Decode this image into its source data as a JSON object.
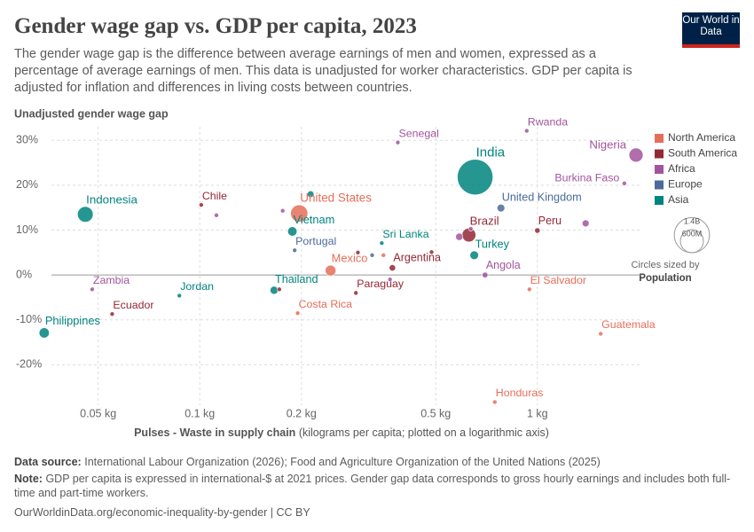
{
  "logo": "Our World in Data",
  "chart_data": {
    "type": "scatter",
    "title": "Gender wage gap vs. GDP per capita, 2023",
    "subtitle": "The gender wage gap is the difference between average earnings of men and women, expressed as a percentage of average earnings of men. This data is unadjusted for worker characteristics. GDP per capita is adjusted for inflation and differences in living costs between countries.",
    "y_label": "Unadjusted gender wage gap",
    "x_label": "Pulses - Waste in supply chain",
    "x_label_note": "(kilograms per capita; plotted on a logarithmic axis)",
    "x_log": true,
    "grid": true,
    "legend_position": "right",
    "xlim": [
      0.033,
      2.02
    ],
    "ylim": [
      -29,
      33
    ],
    "xticks": [
      {
        "value": 0.05,
        "label": "0.05 kg"
      },
      {
        "value": 0.1,
        "label": "0.1 kg"
      },
      {
        "value": 0.2,
        "label": "0.2 kg"
      },
      {
        "value": 0.5,
        "label": "0.5 kg"
      },
      {
        "value": 1,
        "label": "1 kg"
      }
    ],
    "yticks": [
      {
        "value": -20,
        "label": "-20%"
      },
      {
        "value": -10,
        "label": "-10%"
      },
      {
        "value": 0,
        "label": "0%"
      },
      {
        "value": 10,
        "label": "10%"
      },
      {
        "value": 20,
        "label": "20%"
      },
      {
        "value": 30,
        "label": "30%"
      }
    ],
    "series": [
      {
        "name": "North America",
        "color": "#e56e5a",
        "labels": [
          "United States",
          "Mexico",
          "Costa Rica",
          "El Salvador",
          "Guatemala",
          "Honduras",
          null
        ],
        "x": [
          0.197,
          0.244,
          0.195,
          0.947,
          1.54,
          0.748,
          0.35
        ],
        "values": [
          13.7,
          1.0,
          -8.5,
          -3.2,
          -13.1,
          -28.3,
          4.4
        ],
        "sizes": [
          335,
          128,
          5,
          6,
          18,
          10,
          4
        ]
      },
      {
        "name": "South America",
        "color": "#932834",
        "labels": [
          "Chile",
          "Argentina",
          "Brazil",
          "Peru",
          "Ecuador",
          "Paraguay",
          null,
          null,
          null
        ],
        "x": [
          0.101,
          0.372,
          0.627,
          1.0,
          0.055,
          0.29,
          0.294,
          0.486,
          0.172
        ],
        "values": [
          15.6,
          1.6,
          8.9,
          9.9,
          -8.7,
          -4.0,
          5.0,
          5.1,
          -3.2
        ],
        "sizes": [
          19,
          46,
          216,
          34,
          18,
          7,
          3,
          3,
          12
        ]
      },
      {
        "name": "Africa",
        "color": "#a2559c",
        "labels": [
          "Nigeria",
          "Rwanda",
          "Senegal",
          "Burkina Faso",
          "Zambia",
          "Angola",
          null,
          null,
          null,
          null,
          null,
          null
        ],
        "x": [
          1.96,
          0.93,
          0.386,
          1.81,
          0.048,
          0.7,
          0.112,
          0.176,
          0.587,
          1.39,
          0.366,
          0.635
        ],
        "values": [
          26.7,
          32.1,
          29.5,
          20.4,
          -3.2,
          0.0,
          13.3,
          14.3,
          8.5,
          11.5,
          -1.0,
          10.3
        ],
        "sizes": [
          224,
          14,
          18,
          23,
          20,
          37,
          5,
          6,
          60,
          55,
          6,
          4
        ]
      },
      {
        "name": "Europe",
        "color": "#4c6a9c",
        "labels": [
          "United Kingdom",
          "Portugal",
          null
        ],
        "x": [
          0.78,
          0.191,
          0.324
        ],
        "values": [
          14.9,
          5.5,
          4.4
        ],
        "sizes": [
          68,
          10,
          5
        ]
      },
      {
        "name": "Asia",
        "color": "#00847e",
        "labels": [
          "India",
          "Indonesia",
          "Vietnam",
          "Sri Lanka",
          "Turkey",
          "Jordan",
          "Philippines",
          "Thailand",
          null
        ],
        "x": [
          0.654,
          0.0458,
          0.188,
          0.346,
          0.65,
          0.087,
          0.0346,
          0.166,
          0.213
        ],
        "values": [
          21.8,
          13.5,
          9.7,
          7.1,
          4.4,
          -4.6,
          -12.9,
          -3.4,
          18.0
        ],
        "sizes": [
          1430,
          278,
          99,
          22,
          85,
          11,
          117,
          72,
          52
        ]
      }
    ],
    "size_legend": {
      "values": [
        {
          "value": 1400,
          "label": "1.4B"
        },
        {
          "value": 600,
          "label": "600M"
        }
      ],
      "title": "Circles sized by",
      "variable": "Population"
    }
  },
  "footer": {
    "source_label": "Data source:",
    "source": "International Labour Organization (2026); Food and Agriculture Organization of the United Nations (2025)",
    "note_label": "Note:",
    "note": "GDP per capita is expressed in international-$ at 2021 prices. Gender gap data corresponds to gross hourly earnings and includes both full-time and part-time workers.",
    "url": "OurWorldinData.org/economic-inequality-by-gender | CC BY"
  }
}
